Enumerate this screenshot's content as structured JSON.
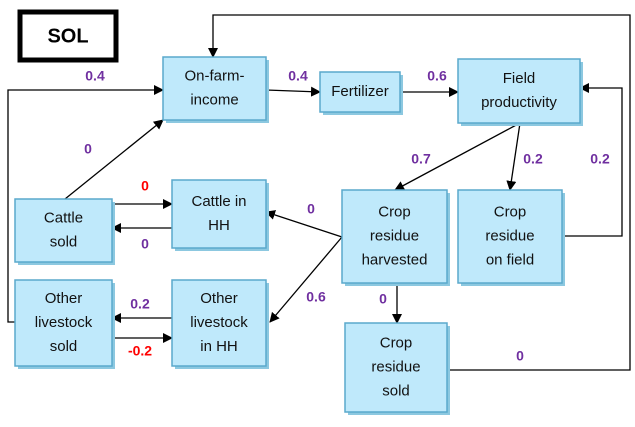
{
  "title": "SOL",
  "nodes": [
    {
      "label": [
        "On-farm-",
        "income"
      ]
    },
    {
      "label": [
        "Fertilizer"
      ]
    },
    {
      "label": [
        "Field",
        "productivity"
      ]
    },
    {
      "label": [
        "Cattle in",
        "HH"
      ]
    },
    {
      "label": [
        "Cattle",
        "sold"
      ]
    },
    {
      "label": [
        "Crop",
        "residue",
        "harvested"
      ]
    },
    {
      "label": [
        "Crop",
        "residue",
        "on field"
      ]
    },
    {
      "label": [
        "Other",
        "livestock",
        "sold"
      ]
    },
    {
      "label": [
        "Other",
        "livestock",
        "in HH"
      ]
    },
    {
      "label": [
        "Crop",
        "residue",
        "sold"
      ]
    }
  ],
  "edges": [
    {
      "label": 0.4,
      "color": "#7030a0"
    },
    {
      "label": 0.6,
      "color": "#7030a0"
    },
    {
      "label": 0.4,
      "color": "#7030a0"
    },
    {
      "label": 0,
      "color": "#7030a0"
    },
    {
      "label": 0.7,
      "color": "#7030a0"
    },
    {
      "label": 0.2,
      "color": "#7030a0"
    },
    {
      "label": 0.2,
      "color": "#7030a0"
    },
    {
      "label": 0,
      "color": "#ff0000"
    },
    {
      "label": 0,
      "color": "#7030a0"
    },
    {
      "label": 0,
      "color": "#7030a0"
    },
    {
      "label": 0.6,
      "color": "#7030a0"
    },
    {
      "label": 0,
      "color": "#7030a0"
    },
    {
      "label": 0.2,
      "color": "#7030a0"
    },
    {
      "label": -0.2,
      "color": "#ff0000"
    },
    {
      "label": 0,
      "color": "#7030a0"
    }
  ]
}
